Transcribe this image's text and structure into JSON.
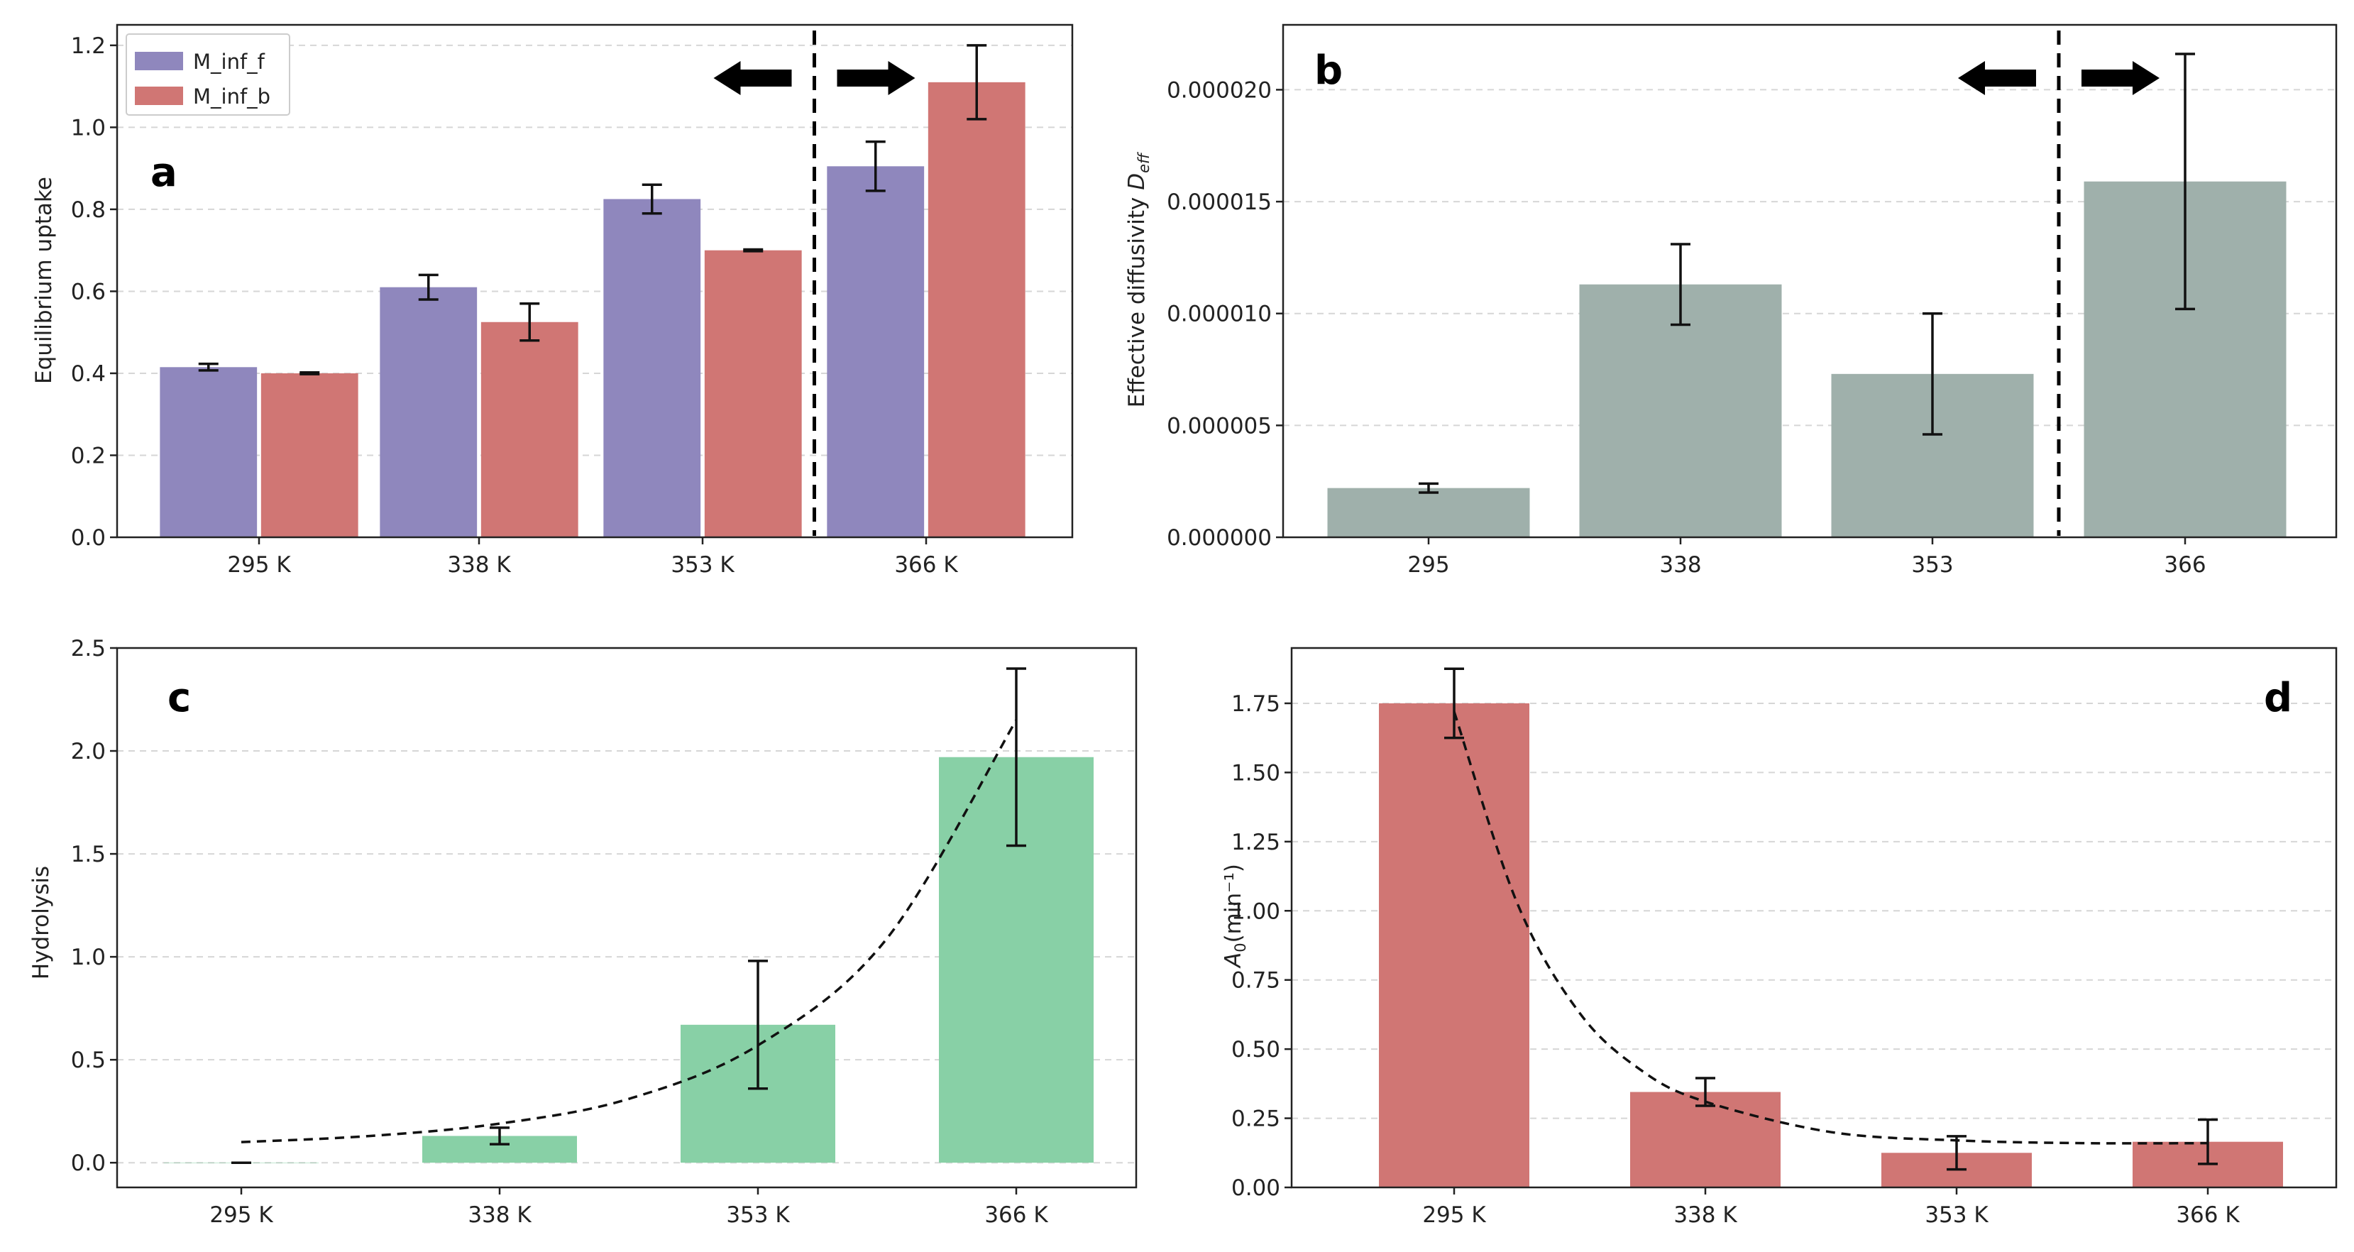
{
  "chart_data": [
    {
      "panel": "a",
      "type": "bar",
      "categories": [
        "295 K",
        "338 K",
        "353 K",
        "366 K"
      ],
      "series": [
        {
          "name": "M_inf_f",
          "color": "#8f87bd",
          "values": [
            0.415,
            0.61,
            0.825,
            0.905
          ],
          "errors": [
            0.008,
            0.03,
            0.035,
            0.06
          ]
        },
        {
          "name": "M_inf_b",
          "color": "#d07674",
          "values": [
            0.4,
            0.525,
            0.7,
            1.11
          ],
          "errors": [
            0.002,
            0.045,
            0.002,
            0.09
          ]
        }
      ],
      "ylabel": "Equilibrium uptake",
      "ylim": [
        0,
        1.25
      ],
      "yticks": [
        0.0,
        0.2,
        0.4,
        0.6,
        0.8,
        1.0,
        1.2
      ],
      "ytick_labels": [
        "0.0",
        "0.2",
        "0.4",
        "0.6",
        "0.8",
        "1.0",
        "1.2"
      ],
      "legend": "top-left",
      "grid": true,
      "divider_between": [
        2,
        3
      ],
      "arrows": [
        "left",
        "right"
      ]
    },
    {
      "panel": "b",
      "type": "bar",
      "categories": [
        "295",
        "338",
        "353",
        "366"
      ],
      "series": [
        {
          "name": "D_eff",
          "color": "#9fb0ab",
          "values": [
            2.2e-06,
            1.13e-05,
            7.3e-06,
            1.59e-05
          ],
          "errors": [
            2e-07,
            1.8e-06,
            2.7e-06,
            5.7e-06
          ]
        }
      ],
      "ylabel": "Effective diffusivity",
      "ylabel_math": "D",
      "ylabel_sub": "eff",
      "ylim": [
        0,
        2.29e-05
      ],
      "yticks": [
        0,
        5e-06,
        1e-05,
        1.5e-05,
        2e-05
      ],
      "ytick_labels": [
        "0.000000",
        "0.000005",
        "0.000010",
        "0.000015",
        "0.000020"
      ],
      "grid": true,
      "divider_between": [
        2,
        3
      ],
      "arrows": [
        "left",
        "right"
      ]
    },
    {
      "panel": "c",
      "type": "bar",
      "categories": [
        "295 K",
        "338 K",
        "353 K",
        "366 K"
      ],
      "series": [
        {
          "name": "Hydrolysis",
          "color": "#88d0a6",
          "values": [
            0.0,
            0.13,
            0.67,
            1.97
          ],
          "errors": [
            0.0,
            0.04,
            0.31,
            0.43
          ]
        }
      ],
      "fit_curve": {
        "type": "exponential",
        "x": [
          0,
          0.5,
          1,
          1.5,
          2,
          2.5,
          3
        ],
        "y": [
          0.1,
          0.13,
          0.19,
          0.31,
          0.57,
          1.09,
          2.15
        ]
      },
      "ylabel": "Hydrolysis",
      "ylim": [
        -0.12,
        2.5
      ],
      "yticks": [
        0.0,
        0.5,
        1.0,
        1.5,
        2.0,
        2.5
      ],
      "ytick_labels": [
        "0.0",
        "0.5",
        "1.0",
        "1.5",
        "2.0",
        "2.5"
      ],
      "grid": true
    },
    {
      "panel": "d",
      "type": "bar",
      "categories": [
        "295 K",
        "338 K",
        "353 K",
        "366 K"
      ],
      "series": [
        {
          "name": "A0",
          "color": "#d07674",
          "values": [
            1.75,
            0.345,
            0.125,
            0.165
          ],
          "errors": [
            0.125,
            0.05,
            0.06,
            0.08
          ]
        }
      ],
      "fit_curve": {
        "type": "exponential-decay",
        "x": [
          0,
          0.25,
          0.5,
          0.75,
          1,
          1.5,
          2,
          2.5,
          3
        ],
        "y": [
          1.72,
          1.03,
          0.63,
          0.42,
          0.31,
          0.2,
          0.17,
          0.16,
          0.16
        ]
      },
      "ylabel_math": "A",
      "ylabel_sub": "0",
      "ylabel_unit": "(min⁻¹)",
      "ylim": [
        0,
        1.95
      ],
      "yticks": [
        0.0,
        0.25,
        0.5,
        0.75,
        1.0,
        1.25,
        1.5,
        1.75
      ],
      "ytick_labels": [
        "0.00",
        "0.25",
        "0.50",
        "0.75",
        "1.00",
        "1.25",
        "1.50",
        "1.75"
      ],
      "grid": true
    }
  ]
}
